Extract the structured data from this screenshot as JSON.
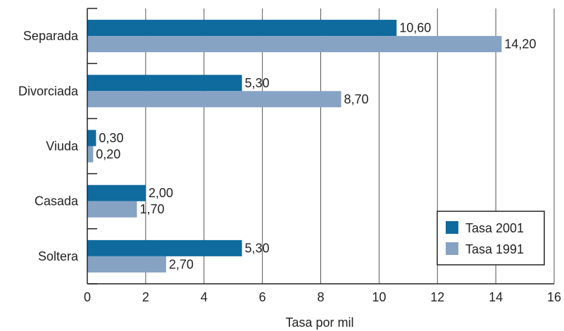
{
  "chart_data": {
    "type": "bar",
    "orientation": "horizontal",
    "categories": [
      "Separada",
      "Divorciada",
      "Viuda",
      "Casada",
      "Soltera"
    ],
    "series": [
      {
        "name": "Tasa 2001",
        "color": "#0f6a9e",
        "values": [
          10.6,
          5.3,
          0.3,
          2.0,
          5.3
        ],
        "labels": [
          "10,60",
          "5,30",
          "0,30",
          "2,00",
          "5,30"
        ]
      },
      {
        "name": "Tasa 1991",
        "color": "#86a3c4",
        "values": [
          14.2,
          8.7,
          0.2,
          1.7,
          2.7
        ],
        "labels": [
          "14,20",
          "8,70",
          "0,20",
          "1,70",
          "2,70"
        ]
      }
    ],
    "xlabel": "Tasa por mil",
    "ylabel": "",
    "xlim": [
      0,
      16
    ],
    "xticks": [
      0,
      2,
      4,
      6,
      8,
      10,
      12,
      14,
      16
    ],
    "xtick_labels": [
      "0",
      "2",
      "4",
      "6",
      "8",
      "10",
      "12",
      "14",
      "16"
    ],
    "grid": "vertical",
    "legend_position": "bottom-right"
  }
}
